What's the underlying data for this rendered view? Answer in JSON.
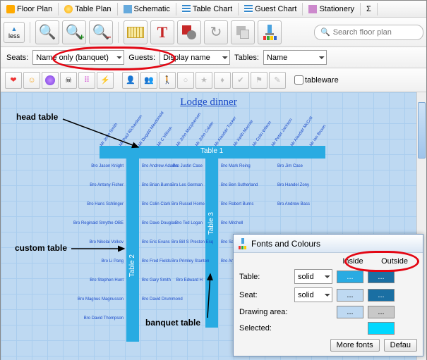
{
  "tabs": [
    {
      "label": "Floor Plan",
      "icon": "#ffaa00"
    },
    {
      "label": "Table Plan",
      "icon": "#ffcc00"
    },
    {
      "label": "Schematic",
      "icon": "#66aadd"
    },
    {
      "label": "Table Chart",
      "icon": "#3388cc"
    },
    {
      "label": "Guest Chart",
      "icon": "#3388cc"
    },
    {
      "label": "Stationery",
      "icon": "#cc88cc"
    },
    {
      "label": "Σ",
      "icon": "#888"
    }
  ],
  "less_label": "less",
  "search_placeholder": "Search floor plan",
  "controls": {
    "seats_label": "Seats:",
    "seats_value": "Name only (banquet)",
    "guests_label": "Guests:",
    "guests_value": "Display name",
    "tables_label": "Tables:",
    "tables_value": "Name"
  },
  "tableware_label": "tableware",
  "plan_title": "Lodge dinner",
  "tables": {
    "t1": "Table 1",
    "t2": "Table 2",
    "t3": "Table 3"
  },
  "annotations": {
    "head": "head table",
    "custom": "custom table",
    "banquet": "banquet table"
  },
  "colors": {
    "table_inside": "#29abe2",
    "table_outside": "#1a6fa3",
    "seat_inside": "#bed9f2",
    "seat_outside": "#1a6fa3",
    "drawing": "#bed9f2",
    "drawing_out": "#c8c8c8",
    "selected": "#00d8ff",
    "highlight": "#e30613"
  },
  "dialog": {
    "title": "Fonts and Colours",
    "col_inside": "Inside",
    "col_outside": "Outside",
    "row_table": "Table:",
    "row_seat": "Seat:",
    "row_drawing": "Drawing area:",
    "row_selected": "Selected:",
    "fill_solid": "solid",
    "btn_more": "More fonts",
    "btn_default": "Defau",
    "ellipsis": "..."
  },
  "guests_top": [
    "Mr John Smith",
    "Mr Paul Richardson",
    "Mr Dugald Macdonald",
    "Mr C Wilson",
    "Mr John Macpherson",
    "Mr John Calder",
    "Mr Alasdair Tucker",
    "Mr Keith Macrae",
    "Mr Colin Wilson",
    "Mr Peter Jackson",
    "Mr Alasdair McColl",
    "Mr Ian Brown"
  ],
  "guests_left": [
    "Bro Jason Knight",
    "Bro Antony Fisher",
    "Bro Hans Schlinger",
    "Bro Reginald Smythe OBE",
    "Bro Nikolai Volkov",
    "Bro Li Pang",
    "Bro Stephen Hunt",
    "Bro Magnus Magnusson",
    "Bro David Thompson"
  ],
  "guests_t2l": [
    "Bro Andrew Adams",
    "Bro Brian Burns",
    "Bro Colin Clark",
    "Bro Dave Douglas",
    "Bro Eric Evans",
    "Bro Fred Fields",
    "Bro Gary Smith",
    "Bro David Drummond"
  ],
  "guests_t3l": [
    "Bro Justin Case",
    "Bro Les German",
    "Bro Russel Home",
    "Bro Ted Logan",
    "Bro Bill S Preston Esq",
    "Bro Primley Stanton",
    "Bro Edward H"
  ],
  "guests_t3r": [
    "Bro Mark Reing",
    "Bro Ben Sutherland",
    "Bro Robert Burns",
    "Bro Mitchell",
    "Bro Sandy W",
    "Bro Angus T"
  ],
  "guests_right": [
    "Bro Jim Case",
    "Bro Handel Zony",
    "Bro Andrew Bass"
  ]
}
